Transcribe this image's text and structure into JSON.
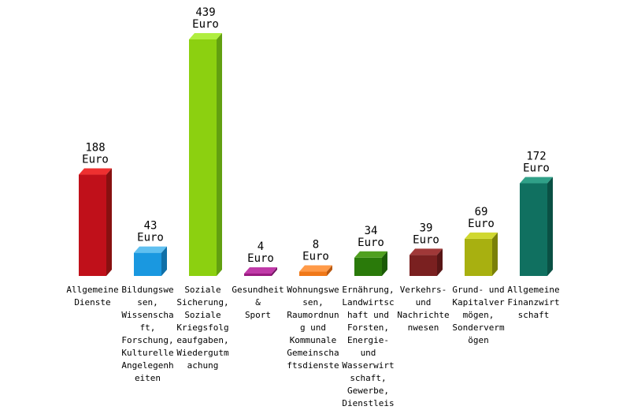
{
  "chart_data": {
    "type": "bar",
    "unit": "Euro",
    "categories": [
      [
        "Allgemeine",
        "Dienste"
      ],
      [
        "Bildungswe",
        "sen,",
        "Wissenscha",
        "ft,",
        "Forschung,",
        "Kulturelle",
        "Angelegenh",
        "eiten"
      ],
      [
        "Soziale",
        "Sicherung,",
        "Soziale",
        "Kriegsfolg",
        "eaufgaben,",
        "Wiedergutm",
        "achung"
      ],
      [
        "Gesundheit",
        "&",
        "Sport"
      ],
      [
        "Wohnungswe",
        "sen,",
        "Raumordnun",
        "g und",
        "Kommunale",
        "Gemeinscha",
        "ftsdienste"
      ],
      [
        "Ernährung,",
        "Landwirtsc",
        "haft und",
        "Forsten,",
        "Energie-",
        "und",
        "Wasserwirt",
        "schaft,",
        "Gewerbe,",
        "Dienstleis"
      ],
      [
        "Verkehrs-",
        "und",
        "Nachrichte",
        "nwesen"
      ],
      [
        "Grund- und",
        "Kapitalver",
        "mögen,",
        "Sonderverm",
        "ögen"
      ],
      [
        "Allgemeine",
        "Finanzwirt",
        "schaft"
      ]
    ],
    "values": [
      188,
      43,
      439,
      4,
      8,
      34,
      39,
      69,
      172
    ],
    "colors": [
      "#c0101a",
      "#1a98e0",
      "#8cd010",
      "#9a1a80",
      "#f07818",
      "#2a7a0a",
      "#7a2020",
      "#a8b010",
      "#107060"
    ],
    "top_colors": [
      "#ee3030",
      "#60c0f0",
      "#b0ee40",
      "#c03aa8",
      "#ff9a48",
      "#50a020",
      "#a03838",
      "#d0d830",
      "#30a088"
    ],
    "side_colors": [
      "#881010",
      "#1070a8",
      "#62a010",
      "#701260",
      "#b85810",
      "#1a5a06",
      "#581616",
      "#7a8008",
      "#0a5044"
    ],
    "ylim": [
      0,
      439
    ],
    "grid": false,
    "legend": "none"
  }
}
